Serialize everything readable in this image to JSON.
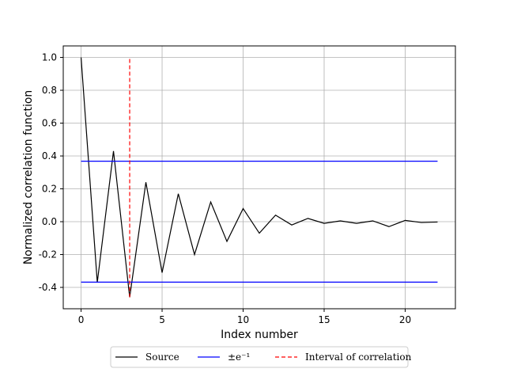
{
  "chart_data": {
    "type": "line",
    "title": "",
    "xlabel": "Index number",
    "ylabel": "Normalized correlation function",
    "xlim": [
      -1.1,
      23.1
    ],
    "ylim": [
      -0.53,
      1.07
    ],
    "xticks": [
      0,
      5,
      10,
      15,
      20
    ],
    "yticks": [
      -0.4,
      -0.2,
      0.0,
      0.2,
      0.4,
      0.6,
      0.8,
      1.0
    ],
    "ytick_labels": [
      "-0.4",
      "-0.2",
      "0.0",
      "0.2",
      "0.4",
      "0.6",
      "0.8",
      "1.0"
    ],
    "grid": true,
    "legend_position": "below",
    "series": [
      {
        "name": "Source",
        "color": "#000000",
        "style": "solid",
        "x": [
          0,
          1,
          2,
          3,
          4,
          5,
          6,
          7,
          8,
          9,
          10,
          11,
          12,
          13,
          14,
          15,
          16,
          17,
          18,
          19,
          20,
          21,
          22
        ],
        "y": [
          1.0,
          -0.37,
          0.43,
          -0.46,
          0.24,
          -0.31,
          0.17,
          -0.2,
          0.12,
          -0.12,
          0.08,
          -0.07,
          0.04,
          -0.02,
          0.02,
          -0.01,
          0.005,
          -0.01,
          0.005,
          -0.03,
          0.008,
          -0.005,
          -0.002
        ]
      },
      {
        "name": "±e⁻¹ (upper)",
        "legend_label": "±e⁻¹",
        "color": "#0000ff",
        "style": "solid",
        "x": [
          0,
          22
        ],
        "y": [
          0.368,
          0.368
        ]
      },
      {
        "name": "±e⁻¹ (lower)",
        "color": "#0000ff",
        "style": "solid",
        "x": [
          0,
          22
        ],
        "y": [
          -0.368,
          -0.368
        ]
      },
      {
        "name": "Interval of correlation",
        "color": "#ff0000",
        "style": "dashed",
        "x": [
          3,
          3
        ],
        "y": [
          -0.46,
          1.0
        ]
      }
    ],
    "legend": [
      {
        "label": "Source",
        "color": "#000000",
        "style": "solid"
      },
      {
        "label": "±e⁻¹",
        "color": "#0000ff",
        "style": "solid"
      },
      {
        "label": "Interval of correlation",
        "color": "#ff0000",
        "style": "dashed"
      }
    ]
  }
}
